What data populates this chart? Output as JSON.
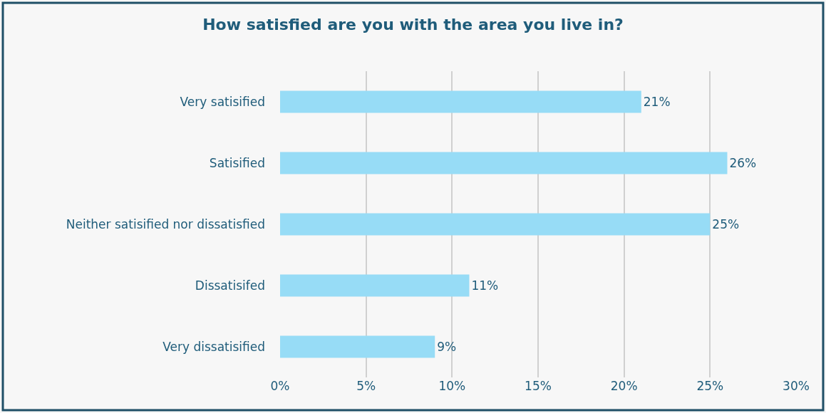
{
  "chart_data": {
    "type": "bar",
    "orientation": "horizontal",
    "title": "How satisfied are you with the area you live in?",
    "categories": [
      "Very satisified",
      "Satisified",
      "Neither satisified nor dissatisfied",
      "Dissatisifed",
      "Very dissatisified"
    ],
    "values": [
      21,
      26,
      25,
      11,
      9
    ],
    "value_labels": [
      "21%",
      "26%",
      "25%",
      "11%",
      "9%"
    ],
    "color": "#97dcf6",
    "xlim": [
      0,
      30
    ],
    "xticks": [
      {
        "value": 0,
        "label": "0%"
      },
      {
        "value": 5,
        "label": "5%"
      },
      {
        "value": 10,
        "label": "10%"
      },
      {
        "value": 15,
        "label": "15%"
      },
      {
        "value": 20,
        "label": "20%"
      },
      {
        "value": 25,
        "label": "25%"
      },
      {
        "value": 30,
        "label": "30%"
      }
    ],
    "grid": "x"
  }
}
